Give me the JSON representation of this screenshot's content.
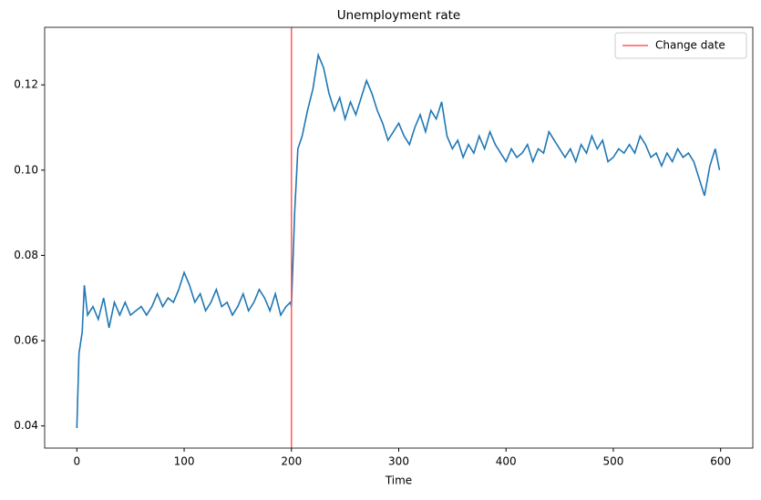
{
  "chart_data": {
    "type": "line",
    "title": "Unemployment rate",
    "x_label": "Time",
    "x": [
      0,
      2,
      5,
      7,
      10,
      15,
      20,
      25,
      30,
      35,
      40,
      45,
      50,
      55,
      60,
      65,
      70,
      75,
      80,
      85,
      90,
      95,
      100,
      105,
      110,
      115,
      120,
      125,
      130,
      135,
      140,
      145,
      150,
      155,
      160,
      165,
      170,
      175,
      180,
      185,
      190,
      195,
      199,
      200,
      203,
      206,
      210,
      215,
      220,
      225,
      230,
      235,
      240,
      245,
      250,
      255,
      260,
      265,
      270,
      275,
      280,
      285,
      290,
      295,
      300,
      305,
      310,
      315,
      320,
      325,
      330,
      335,
      340,
      345,
      350,
      355,
      360,
      365,
      370,
      375,
      380,
      385,
      390,
      395,
      400,
      405,
      410,
      415,
      420,
      425,
      430,
      435,
      440,
      445,
      450,
      455,
      460,
      465,
      470,
      475,
      480,
      485,
      490,
      495,
      500,
      505,
      510,
      515,
      520,
      525,
      530,
      535,
      540,
      545,
      550,
      555,
      560,
      565,
      570,
      575,
      580,
      585,
      590,
      595,
      599
    ],
    "series": [
      {
        "name": "Unemployment rate",
        "color": "#1f77b4",
        "values": [
          0.0395,
          0.057,
          0.062,
          0.073,
          0.066,
          0.068,
          0.065,
          0.07,
          0.063,
          0.069,
          0.066,
          0.069,
          0.066,
          0.067,
          0.068,
          0.066,
          0.068,
          0.071,
          0.068,
          0.07,
          0.069,
          0.072,
          0.076,
          0.073,
          0.069,
          0.071,
          0.067,
          0.069,
          0.072,
          0.068,
          0.069,
          0.066,
          0.068,
          0.071,
          0.067,
          0.069,
          0.072,
          0.07,
          0.067,
          0.071,
          0.066,
          0.068,
          0.069,
          0.068,
          0.09,
          0.105,
          0.108,
          0.114,
          0.119,
          0.127,
          0.124,
          0.118,
          0.114,
          0.117,
          0.112,
          0.116,
          0.113,
          0.117,
          0.121,
          0.118,
          0.114,
          0.111,
          0.107,
          0.109,
          0.111,
          0.108,
          0.106,
          0.11,
          0.113,
          0.109,
          0.114,
          0.112,
          0.116,
          0.108,
          0.105,
          0.107,
          0.103,
          0.106,
          0.104,
          0.108,
          0.105,
          0.109,
          0.106,
          0.104,
          0.102,
          0.105,
          0.103,
          0.104,
          0.106,
          0.102,
          0.105,
          0.104,
          0.109,
          0.107,
          0.105,
          0.103,
          0.105,
          0.102,
          0.106,
          0.104,
          0.108,
          0.105,
          0.107,
          0.102,
          0.103,
          0.105,
          0.104,
          0.106,
          0.104,
          0.108,
          0.106,
          0.103,
          0.104,
          0.101,
          0.104,
          0.102,
          0.105,
          0.103,
          0.104,
          0.102,
          0.098,
          0.094,
          0.101,
          0.105,
          0.1
        ]
      }
    ],
    "vline": {
      "x": 200,
      "label": "Change date",
      "color": "#ff5a5a"
    },
    "legend": "upper right",
    "xlim": [
      -30,
      630
    ],
    "xticks": [
      0,
      100,
      200,
      300,
      400,
      500,
      600
    ],
    "ylim": [
      0.0348,
      0.1335
    ],
    "yticks": [
      0.04,
      0.06,
      0.08,
      {
        "value": 0.1,
        "label": "0.10"
      },
      0.12
    ]
  }
}
